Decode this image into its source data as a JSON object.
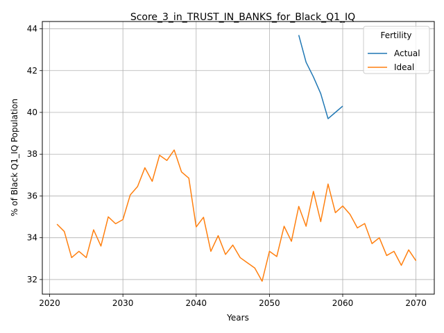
{
  "chart_data": {
    "type": "line",
    "title": "Score_3_in_TRUST_IN_BANKS_for_Black_Q1_IQ",
    "xlabel": "Years",
    "ylabel": "% of Black Q1_IQ Population",
    "xlim": [
      2019,
      2072.5
    ],
    "ylim": [
      31.3,
      44.35
    ],
    "xticks": [
      2020,
      2030,
      2040,
      2050,
      2060,
      2070
    ],
    "yticks": [
      32,
      34,
      36,
      38,
      40,
      42,
      44
    ],
    "grid": true,
    "legend": {
      "title": "Fertility",
      "placement": "top-right"
    },
    "series": [
      {
        "name": "Actual",
        "color": "#1f77b4",
        "x": [
          2054,
          2055,
          2056,
          2057,
          2058,
          2059,
          2060
        ],
        "y": [
          43.7,
          42.4,
          41.7,
          40.9,
          39.7,
          40.0,
          40.3
        ]
      },
      {
        "name": "Ideal",
        "color": "#ff7f0e",
        "x": [
          2021,
          2022,
          2023,
          2024,
          2025,
          2026,
          2027,
          2028,
          2029,
          2030,
          2031,
          2032,
          2033,
          2034,
          2035,
          2036,
          2037,
          2038,
          2039,
          2040,
          2041,
          2042,
          2043,
          2044,
          2045,
          2046,
          2047,
          2048,
          2049,
          2050,
          2051,
          2052,
          2053,
          2054,
          2055,
          2056,
          2057,
          2058,
          2059,
          2060,
          2061,
          2062,
          2063,
          2064,
          2065,
          2066,
          2067,
          2068,
          2069,
          2070
        ],
        "y": [
          34.65,
          34.3,
          33.05,
          33.35,
          33.05,
          34.38,
          33.6,
          35.0,
          34.67,
          34.87,
          36.05,
          36.45,
          37.35,
          36.7,
          37.95,
          37.7,
          38.2,
          37.15,
          36.85,
          34.52,
          34.98,
          33.35,
          34.1,
          33.2,
          33.65,
          33.05,
          32.8,
          32.55,
          31.92,
          33.35,
          33.1,
          34.55,
          33.83,
          35.5,
          34.55,
          36.22,
          34.77,
          36.57,
          35.2,
          35.52,
          35.12,
          34.47,
          34.68,
          33.72,
          34.0,
          33.15,
          33.35,
          32.68,
          33.42,
          32.9
        ]
      }
    ]
  }
}
